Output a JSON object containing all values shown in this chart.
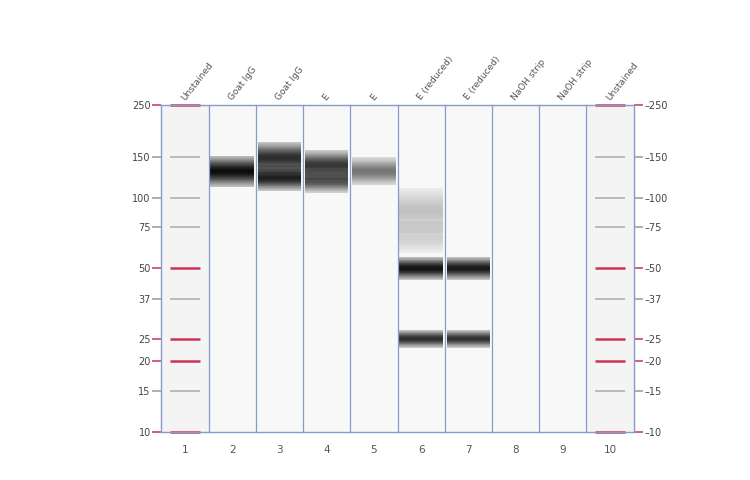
{
  "fig_width": 7.5,
  "fig_height": 4.81,
  "dpi": 100,
  "lane_names": [
    "Unstained",
    "Goat IgG",
    "Goat IgG",
    "E",
    "E",
    "E (reduced)",
    "E (reduced)",
    "NaOH strip",
    "NaOH strip",
    "Unstained"
  ],
  "mw_marks": [
    250,
    150,
    100,
    75,
    50,
    37,
    25,
    20,
    15,
    10
  ],
  "mw_pink": [
    250,
    50,
    25,
    20,
    10
  ],
  "gel_l": 0.215,
  "gel_r": 0.845,
  "gel_t": 0.78,
  "gel_b": 0.1,
  "n_lanes": 10,
  "border_color": "#8899cc",
  "gel_bg": "#f8f8f8",
  "bands_lane2": [
    {
      "mw": 130,
      "intens": 0.95,
      "spread": 0.038
    }
  ],
  "bands_lane3": [
    {
      "mw": 148,
      "intens": 0.82,
      "spread": 0.04
    },
    {
      "mw": 122,
      "intens": 0.88,
      "spread": 0.032
    }
  ],
  "bands_lane4": [
    {
      "mw": 138,
      "intens": 0.78,
      "spread": 0.036
    },
    {
      "mw": 118,
      "intens": 0.68,
      "spread": 0.028
    }
  ],
  "bands_lane5": [
    {
      "mw": 130,
      "intens": 0.52,
      "spread": 0.034
    }
  ],
  "bands_lane6": [
    {
      "mw": 50,
      "intens": 0.93,
      "spread": 0.028
    },
    {
      "mw": 25,
      "intens": 0.82,
      "spread": 0.022
    },
    {
      "mw": 88,
      "intens": 0.22,
      "spread": 0.055
    },
    {
      "mw": 68,
      "intens": 0.16,
      "spread": 0.04
    }
  ],
  "bands_lane7": [
    {
      "mw": 50,
      "intens": 0.9,
      "spread": 0.028
    },
    {
      "mw": 25,
      "intens": 0.8,
      "spread": 0.022
    }
  ]
}
